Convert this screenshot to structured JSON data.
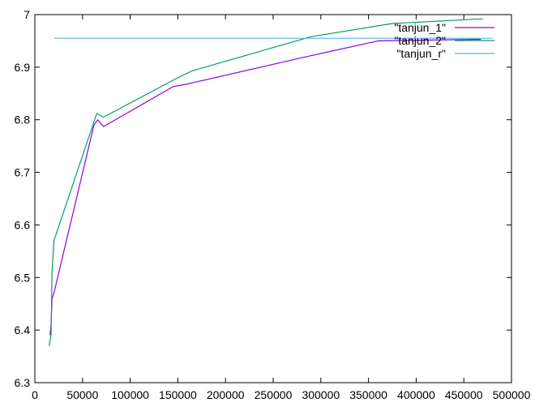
{
  "chart_data": {
    "type": "line",
    "title": "",
    "xlabel": "",
    "ylabel": "",
    "xlim": [
      0,
      500000
    ],
    "ylim": [
      6.3,
      7.0
    ],
    "xticks": [
      0,
      50000,
      100000,
      150000,
      200000,
      250000,
      300000,
      350000,
      400000,
      450000,
      500000
    ],
    "xtick_labels": [
      "0",
      "50000",
      "100000",
      "150000",
      "200000",
      "250000",
      "300000",
      "350000",
      "400000",
      "450000",
      "500000"
    ],
    "yticks": [
      6.3,
      6.4,
      6.5,
      6.6,
      6.7,
      6.8,
      6.9,
      7.0
    ],
    "ytick_labels": [
      "6.3",
      "6.4",
      "6.5",
      "6.6",
      "6.7",
      "6.8",
      "6.9",
      "7"
    ],
    "grid": false,
    "legend_position": "top-right",
    "series": [
      {
        "name": "\"tanjun_1\"",
        "color": "#9400d3",
        "points": [
          [
            16000,
            6.39
          ],
          [
            17000,
            6.41
          ],
          [
            18000,
            6.46
          ],
          [
            20000,
            6.47
          ],
          [
            62000,
            6.79
          ],
          [
            66000,
            6.8
          ],
          [
            72000,
            6.787
          ],
          [
            145000,
            6.863
          ],
          [
            160000,
            6.868
          ],
          [
            280000,
            6.918
          ],
          [
            360000,
            6.95
          ],
          [
            468000,
            6.953
          ]
        ]
      },
      {
        "name": "\"tanjun_2\"",
        "color": "#009e73",
        "points": [
          [
            15000,
            6.37
          ],
          [
            17000,
            6.39
          ],
          [
            18000,
            6.51
          ],
          [
            20000,
            6.57
          ],
          [
            65000,
            6.812
          ],
          [
            72000,
            6.805
          ],
          [
            148000,
            6.878
          ],
          [
            165000,
            6.893
          ],
          [
            290000,
            6.958
          ],
          [
            375000,
            6.983
          ],
          [
            470000,
            6.992
          ]
        ]
      },
      {
        "name": "\"tanjun_r\"",
        "color": "#56b4e9",
        "points": [
          [
            20000,
            6.955
          ],
          [
            480000,
            6.955
          ]
        ]
      }
    ]
  }
}
